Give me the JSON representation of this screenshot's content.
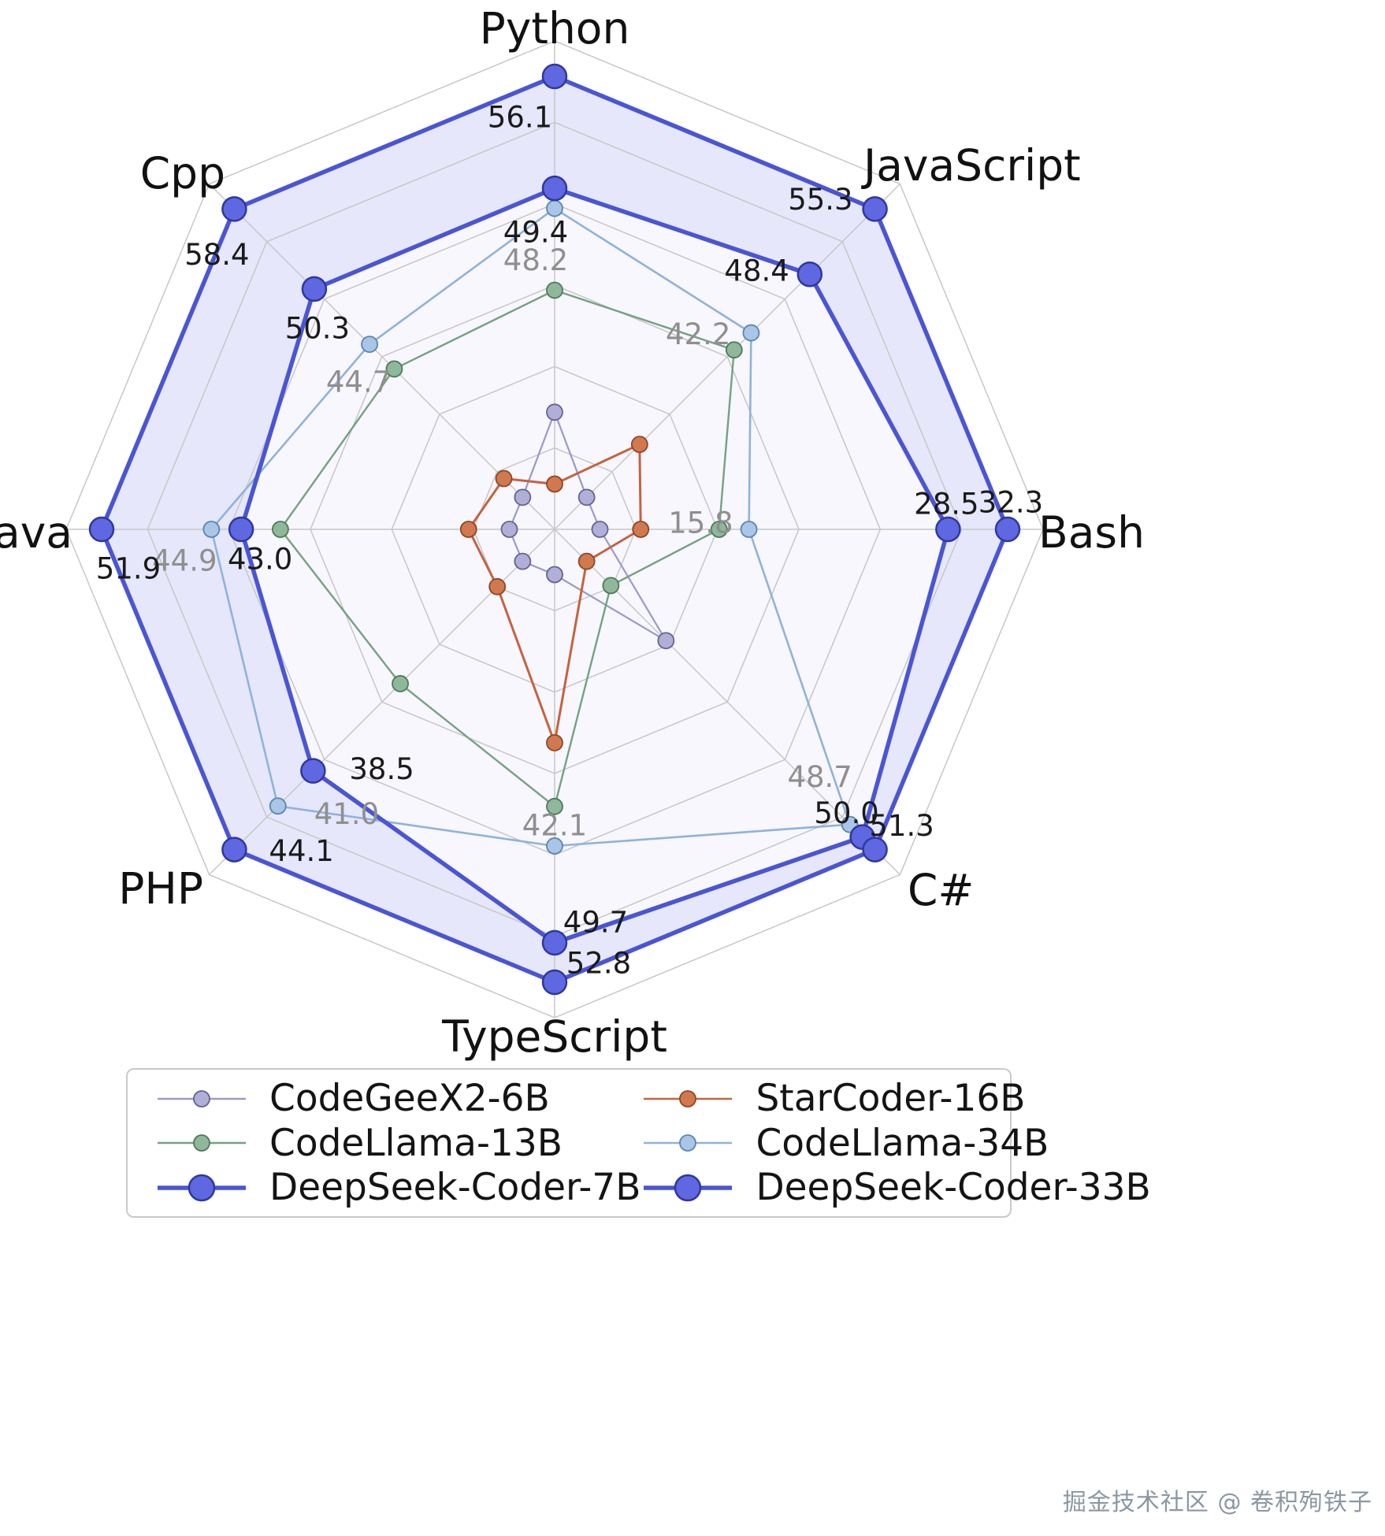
{
  "chart_data": {
    "type": "radar",
    "categories": [
      "Python",
      "JavaScript",
      "Bash",
      "C#",
      "TypeScript",
      "PHP",
      "Java",
      "Cpp"
    ],
    "normalization": "per-axis-min-max",
    "series": [
      {
        "name": "CodeGeeX2-6B",
        "values": [
          36.0,
          24.8,
          6.3,
          29.7,
          20.8,
          23.6,
          25.9,
          29.2
        ],
        "labeled": false,
        "line_color": "#9b9ac9",
        "marker_fill": "#b0afd6",
        "marker_edge": "#63629c",
        "line_width": 2.2,
        "marker_radius": 10
      },
      {
        "name": "StarCoder-16B",
        "values": [
          31.7,
          30.4,
          8.9,
          21.5,
          34.0,
          25.4,
          28.5,
          31.1
        ],
        "labeled": false,
        "line_color": "#c4633f",
        "marker_fill": "#d0794f",
        "marker_edge": "#8f4527",
        "line_width": 3,
        "marker_radius": 10
      },
      {
        "name": "CodeLlama-13B",
        "values": [
          43.3,
          40.4,
          13.9,
          24.0,
          39.0,
          32.3,
          40.5,
          42.2
        ],
        "labeled": false,
        "line_color": "#76a181",
        "marker_fill": "#8fb79a",
        "marker_edge": "#4d7a59",
        "line_width": 2.4,
        "marker_radius": 10
      },
      {
        "name": "CodeLlama-34B",
        "values": [
          48.2,
          42.2,
          15.8,
          48.7,
          42.1,
          41.0,
          44.9,
          44.7
        ],
        "labeled": true,
        "label_color": "#8f8f8f",
        "line_color": "#8fb3d9",
        "marker_fill": "#a9c6e6",
        "marker_edge": "#5a84b4",
        "line_width": 2.6,
        "marker_radius": 10
      },
      {
        "name": "DeepSeek-Coder-7B",
        "values": [
          49.4,
          48.4,
          28.5,
          50.0,
          49.7,
          38.5,
          43.0,
          50.3
        ],
        "labeled": true,
        "label_color": "#1a1a1a",
        "line_color": "#4a55d5",
        "marker_fill": "#5f68e0",
        "marker_edge": "#2e38a0",
        "line_width": 5.5,
        "marker_radius": 15
      },
      {
        "name": "DeepSeek-Coder-33B",
        "values": [
          56.1,
          55.3,
          32.3,
          51.3,
          52.8,
          44.1,
          51.9,
          58.4
        ],
        "labeled": true,
        "label_color": "#1a1a1a",
        "line_color": "#4a55d5",
        "marker_fill": "#5f68e0",
        "marker_edge": "#2e38a0",
        "line_width": 5.5,
        "marker_radius": 15
      }
    ],
    "fill": {
      "band_color": "#6169de",
      "band_opacity": 0.16,
      "inner_opacity": 0.05
    },
    "legend": {
      "position": "bottom",
      "entries": [
        "CodeGeeX2-6B",
        "StarCoder-16B",
        "CodeLlama-13B",
        "CodeLlama-34B",
        "DeepSeek-Coder-7B",
        "DeepSeek-Coder-33B"
      ]
    },
    "grid": true
  },
  "watermark": "掘金技术社区 @ 卷积殉铁子"
}
